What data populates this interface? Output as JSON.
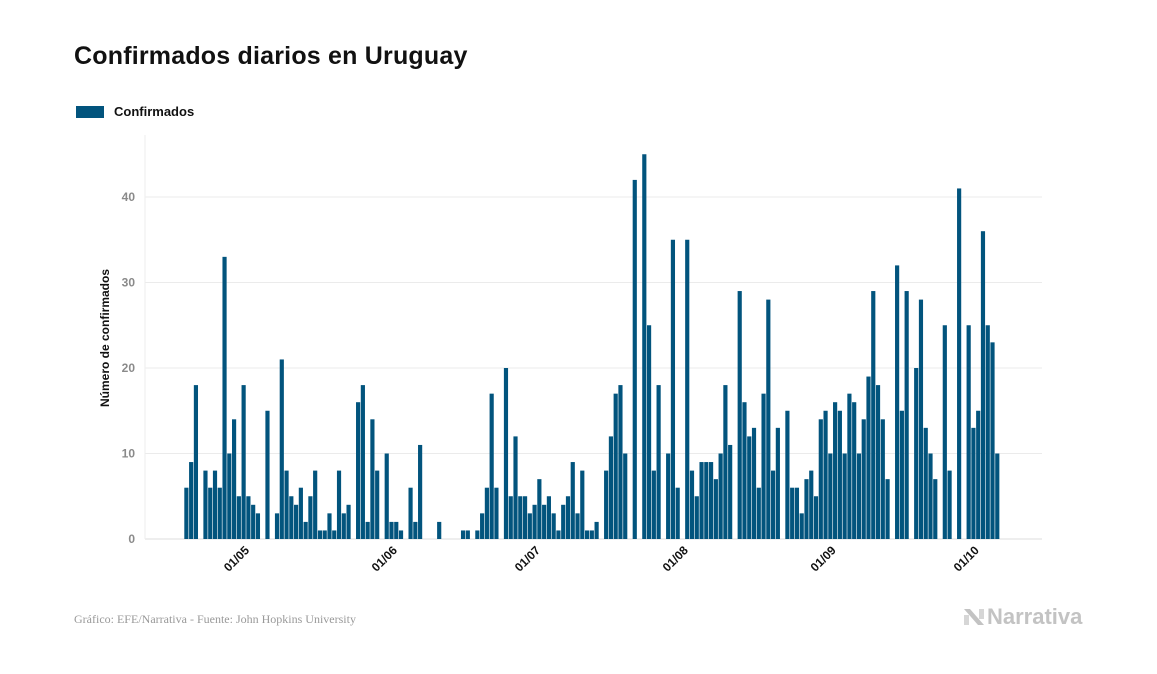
{
  "title": "Confirmados diarios en Uruguay",
  "footer": "Gráfico: EFE/Narrativa - Fuente: John Hopkins University",
  "logo_text": "Narrativa",
  "colors": {
    "bar": "#02547d",
    "grid": "#ebebeb",
    "tick": "#8a8a8a"
  },
  "chart_data": {
    "type": "bar",
    "title": "Confirmados diarios en Uruguay",
    "xlabel": "",
    "ylabel": "Número de confirmados",
    "ylim": [
      0,
      47
    ],
    "y_ticks": [
      "0",
      "10",
      "20",
      "30",
      "40"
    ],
    "grid": true,
    "legend": {
      "position": "top-left",
      "entries": [
        "Confirmados"
      ]
    },
    "start_date": "19/04",
    "x_ticks": [
      {
        "label": "01/05",
        "index": 12
      },
      {
        "label": "01/06",
        "index": 43
      },
      {
        "label": "01/07",
        "index": 73
      },
      {
        "label": "01/08",
        "index": 104
      },
      {
        "label": "01/09",
        "index": 135
      },
      {
        "label": "01/10",
        "index": 165
      }
    ],
    "series": [
      {
        "name": "Confirmados",
        "values": [
          6,
          9,
          18,
          0,
          8,
          6,
          8,
          6,
          33,
          10,
          14,
          5,
          18,
          5,
          4,
          3,
          0,
          15,
          0,
          3,
          21,
          8,
          5,
          4,
          6,
          2,
          5,
          8,
          1,
          1,
          3,
          1,
          8,
          3,
          4,
          0,
          16,
          18,
          2,
          14,
          8,
          0,
          10,
          2,
          2,
          1,
          0,
          6,
          2,
          11,
          0,
          0,
          0,
          2,
          0,
          0,
          0,
          0,
          1,
          1,
          0,
          1,
          3,
          6,
          17,
          6,
          0,
          20,
          5,
          12,
          5,
          5,
          3,
          4,
          7,
          4,
          5,
          3,
          1,
          4,
          5,
          9,
          3,
          8,
          1,
          1,
          2,
          0,
          8,
          12,
          17,
          18,
          10,
          0,
          42,
          0,
          45,
          25,
          8,
          18,
          0,
          10,
          35,
          6,
          0,
          35,
          8,
          5,
          9,
          9,
          9,
          7,
          10,
          18,
          11,
          0,
          29,
          16,
          12,
          13,
          6,
          17,
          28,
          8,
          13,
          0,
          15,
          6,
          6,
          3,
          7,
          8,
          5,
          14,
          15,
          10,
          16,
          15,
          10,
          17,
          16,
          10,
          14,
          19,
          29,
          18,
          14,
          7,
          0,
          32,
          15,
          29,
          0,
          20,
          28,
          13,
          10,
          7,
          0,
          25,
          8,
          0,
          41,
          0,
          25,
          13,
          15,
          36,
          25,
          23,
          10
        ]
      }
    ]
  }
}
